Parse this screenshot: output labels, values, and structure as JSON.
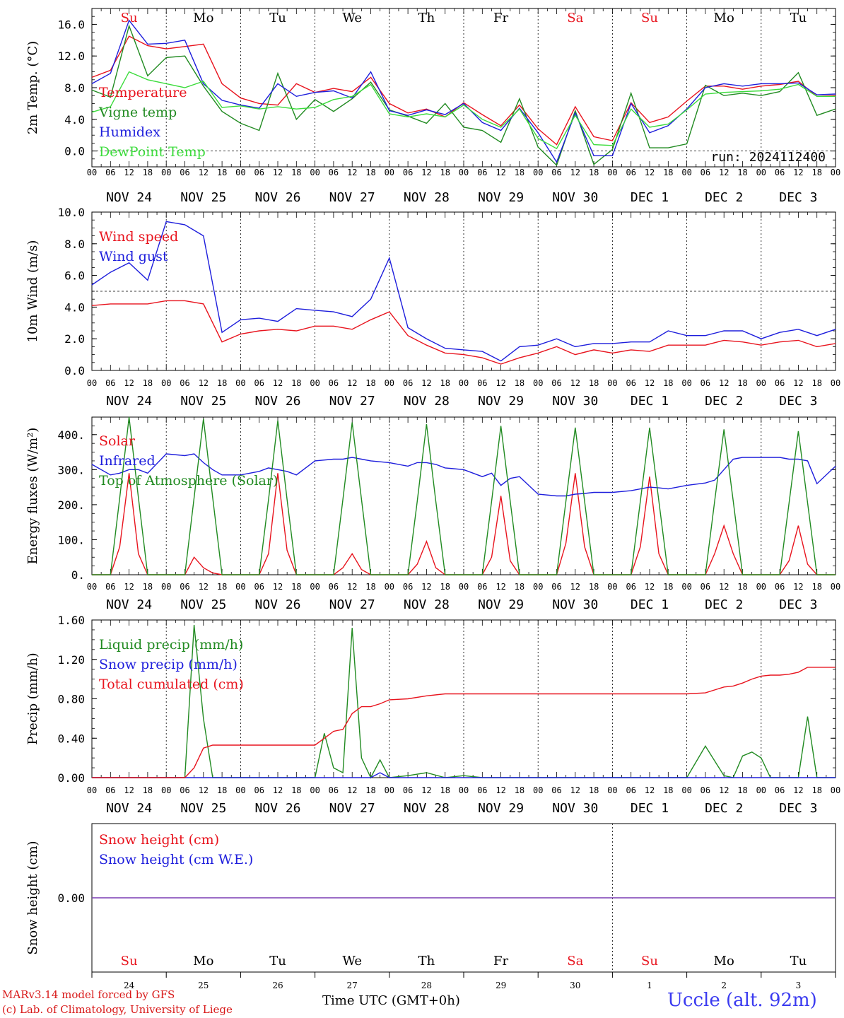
{
  "colors": {
    "red": "#e8141e",
    "green": "#228b22",
    "blue": "#1e1edc",
    "lightgreen": "#3cdc3c",
    "purple": "#7a3cb4"
  },
  "weekdays_top": [
    {
      "label": "Su",
      "color": "red"
    },
    {
      "label": "Mo",
      "color": "black"
    },
    {
      "label": "Tu",
      "color": "black"
    },
    {
      "label": "We",
      "color": "black"
    },
    {
      "label": "Th",
      "color": "black"
    },
    {
      "label": "Fr",
      "color": "black"
    },
    {
      "label": "Sa",
      "color": "red"
    },
    {
      "label": "Su",
      "color": "red"
    },
    {
      "label": "Mo",
      "color": "black"
    },
    {
      "label": "Tu",
      "color": "black"
    }
  ],
  "date_labels": [
    "NOV 24",
    "NOV 25",
    "NOV 26",
    "NOV 27",
    "NOV 28",
    "NOV 29",
    "NOV 30",
    "DEC  1",
    "DEC  2",
    "DEC  3"
  ],
  "hour_labels": [
    "00",
    "06",
    "12",
    "18"
  ],
  "hour_label_end": "00",
  "day_numbers": [
    "24",
    "25",
    "26",
    "27",
    "28",
    "29",
    "30",
    "1",
    "2",
    "3"
  ],
  "run_label": "run: 2024112400",
  "footer": {
    "line1": "MARv3.14 model forced by GFS",
    "line2": "(c) Lab. of Climatology, University of Liege",
    "station": "Uccle (alt. 92m)",
    "xaxis_title": "Time UTC (GMT+0h)",
    "xaxis_month": "NOV",
    "xaxis_month2": "DEC"
  },
  "chart_data": [
    {
      "type": "line",
      "ylabel": "2m Temp. (°C)",
      "ylim": [
        -2,
        18
      ],
      "yticks": [
        "0.0",
        "4.0",
        "8.0",
        "12.0",
        "16.0"
      ],
      "ytick_values": [
        0,
        4,
        8,
        12,
        16
      ],
      "ref_line": 0,
      "x_hours": [
        0,
        6,
        12,
        18,
        24,
        30,
        36,
        42,
        48,
        54,
        60,
        66,
        72,
        78,
        84,
        90,
        96,
        102,
        108,
        114,
        120,
        126,
        132,
        138,
        144,
        150,
        156,
        162,
        168,
        174,
        180,
        186,
        192,
        198,
        204,
        210,
        216,
        222,
        228,
        234,
        240
      ],
      "series": [
        {
          "name": "Temperature",
          "color": "red",
          "values": [
            9.3,
            10.2,
            14.5,
            13.3,
            12.9,
            13.2,
            13.5,
            8.5,
            6.7,
            6.0,
            5.8,
            8.5,
            7.4,
            7.9,
            7.5,
            9.3,
            6.0,
            4.8,
            5.3,
            4.3,
            6.1,
            4.6,
            3.2,
            5.8,
            2.8,
            0.8,
            5.6,
            1.8,
            1.3,
            6.1,
            3.6,
            4.3,
            6.3,
            8.2,
            8.2,
            7.8,
            8.2,
            8.4,
            8.8,
            6.9,
            7.0
          ]
        },
        {
          "name": "Vigne temp",
          "color": "green",
          "values": [
            7.7,
            6.8,
            15.8,
            9.5,
            11.8,
            12.0,
            8.2,
            5.0,
            3.5,
            2.6,
            9.8,
            4.0,
            6.5,
            5.0,
            6.6,
            8.7,
            5.2,
            4.4,
            3.5,
            6.0,
            3.0,
            2.6,
            1.1,
            6.6,
            0.5,
            -1.8,
            5.1,
            -1.7,
            0.2,
            7.3,
            0.4,
            0.4,
            0.9,
            8.3,
            7.0,
            7.3,
            7.0,
            7.5,
            9.9,
            4.5,
            5.3
          ]
        },
        {
          "name": "Humidex",
          "color": "blue",
          "values": [
            8.5,
            9.8,
            16.5,
            13.5,
            13.6,
            14.0,
            8.5,
            6.4,
            5.8,
            5.4,
            8.5,
            6.9,
            7.4,
            7.6,
            6.7,
            10.0,
            5.1,
            4.5,
            5.2,
            4.6,
            6.0,
            3.6,
            2.6,
            5.4,
            2.3,
            -1.4,
            4.8,
            -0.6,
            -0.6,
            6.0,
            2.3,
            3.2,
            5.3,
            8.0,
            8.5,
            8.2,
            8.5,
            8.5,
            8.6,
            7.1,
            7.2
          ]
        },
        {
          "name": "DewPoint Temp",
          "color": "lightgreen",
          "values": [
            4.9,
            5.6,
            10.0,
            9.0,
            8.5,
            8.0,
            8.8,
            5.5,
            5.7,
            5.3,
            5.6,
            5.3,
            5.5,
            6.5,
            6.9,
            8.4,
            4.7,
            4.3,
            4.7,
            4.3,
            5.8,
            4.0,
            3.0,
            5.3,
            1.6,
            0.3,
            4.5,
            0.8,
            0.7,
            5.3,
            3.0,
            3.4,
            5.2,
            7.2,
            7.4,
            7.5,
            7.6,
            7.8,
            8.4,
            6.9,
            6.9
          ]
        }
      ]
    },
    {
      "type": "line",
      "ylabel": "10m Wind (m/s)",
      "ylim": [
        0,
        10
      ],
      "yticks": [
        "0.0",
        "2.0",
        "4.0",
        "6.0",
        "8.0",
        "10.0"
      ],
      "ytick_values": [
        0,
        2,
        4,
        6,
        8,
        10
      ],
      "ref_line": 5,
      "x_hours": [
        0,
        6,
        12,
        18,
        24,
        30,
        36,
        42,
        48,
        54,
        60,
        66,
        72,
        78,
        84,
        90,
        96,
        102,
        108,
        114,
        120,
        126,
        132,
        138,
        144,
        150,
        156,
        162,
        168,
        174,
        180,
        186,
        192,
        198,
        204,
        210,
        216,
        222,
        228,
        234,
        240
      ],
      "series": [
        {
          "name": "Wind speed",
          "color": "red",
          "values": [
            4.1,
            4.2,
            4.2,
            4.2,
            4.4,
            4.4,
            4.2,
            1.8,
            2.3,
            2.5,
            2.6,
            2.5,
            2.8,
            2.8,
            2.6,
            3.2,
            3.7,
            2.2,
            1.6,
            1.1,
            1.0,
            0.8,
            0.4,
            0.8,
            1.1,
            1.5,
            1.0,
            1.3,
            1.1,
            1.3,
            1.2,
            1.6,
            1.6,
            1.6,
            1.9,
            1.8,
            1.6,
            1.8,
            1.9,
            1.5,
            1.7
          ]
        },
        {
          "name": "Wind gust",
          "color": "blue",
          "values": [
            5.4,
            6.2,
            6.8,
            5.7,
            9.4,
            9.2,
            8.5,
            2.4,
            3.2,
            3.3,
            3.1,
            3.9,
            3.8,
            3.7,
            3.4,
            4.5,
            7.1,
            2.7,
            2.0,
            1.4,
            1.3,
            1.2,
            0.6,
            1.5,
            1.6,
            2.0,
            1.5,
            1.7,
            1.7,
            1.8,
            1.8,
            2.5,
            2.2,
            2.2,
            2.5,
            2.5,
            2.0,
            2.4,
            2.6,
            2.2,
            2.6
          ]
        }
      ]
    },
    {
      "type": "line",
      "ylabel": "Energy fluxes (W/m²)",
      "ylim": [
        0,
        450
      ],
      "yticks": [
        "0.",
        "100.",
        "200.",
        "300.",
        "400."
      ],
      "ytick_values": [
        0,
        100,
        200,
        300,
        400
      ],
      "x_hours": [
        0,
        6,
        9,
        12,
        15,
        18,
        24,
        30,
        33,
        36,
        39,
        42,
        48,
        54,
        57,
        60,
        63,
        66,
        72,
        78,
        81,
        84,
        87,
        90,
        96,
        102,
        105,
        108,
        111,
        114,
        120,
        126,
        129,
        132,
        135,
        138,
        144,
        150,
        153,
        156,
        159,
        162,
        168,
        174,
        177,
        180,
        183,
        186,
        192,
        198,
        201,
        204,
        207,
        210,
        216,
        222,
        225,
        228,
        231,
        234,
        240
      ],
      "series": [
        {
          "name": "Solar",
          "color": "red",
          "values": [
            0,
            0,
            80,
            290,
            60,
            0,
            0,
            0,
            50,
            20,
            5,
            0,
            0,
            0,
            60,
            290,
            70,
            0,
            0,
            0,
            20,
            60,
            15,
            0,
            0,
            0,
            30,
            95,
            20,
            0,
            0,
            0,
            50,
            225,
            40,
            0,
            0,
            0,
            90,
            290,
            80,
            0,
            0,
            0,
            80,
            280,
            60,
            0,
            0,
            0,
            60,
            140,
            60,
            0,
            0,
            0,
            40,
            140,
            30,
            0,
            0
          ]
        },
        {
          "name": "Infrared",
          "color": "blue",
          "values": [
            315,
            285,
            290,
            300,
            300,
            290,
            345,
            340,
            345,
            320,
            300,
            285,
            285,
            295,
            305,
            300,
            295,
            285,
            325,
            330,
            330,
            335,
            330,
            325,
            320,
            310,
            320,
            320,
            315,
            305,
            300,
            280,
            290,
            255,
            275,
            280,
            230,
            225,
            225,
            230,
            232,
            235,
            235,
            240,
            245,
            250,
            248,
            245,
            255,
            262,
            270,
            300,
            330,
            335,
            335,
            335,
            330,
            330,
            325,
            260,
            310
          ]
        },
        {
          "name": "Top of Atmosphere (Solar)",
          "color": "green",
          "values": [
            0,
            0,
            220,
            450,
            220,
            0,
            0,
            0,
            220,
            445,
            220,
            0,
            0,
            0,
            215,
            440,
            215,
            0,
            0,
            0,
            215,
            435,
            215,
            0,
            0,
            0,
            210,
            430,
            210,
            0,
            0,
            0,
            210,
            425,
            210,
            0,
            0,
            0,
            210,
            420,
            210,
            0,
            0,
            0,
            210,
            420,
            210,
            0,
            0,
            0,
            210,
            415,
            210,
            0,
            0,
            0,
            205,
            410,
            205,
            0,
            0
          ]
        }
      ]
    },
    {
      "type": "line",
      "ylabel": "Precip (mm/h)",
      "ylim": [
        0,
        1.6
      ],
      "yticks": [
        "0.00",
        "0.40",
        "0.80",
        "1.20",
        "1.60"
      ],
      "ytick_values": [
        0,
        0.4,
        0.8,
        1.2,
        1.6
      ],
      "x_hours": [
        0,
        6,
        12,
        18,
        24,
        30,
        33,
        36,
        39,
        42,
        48,
        54,
        60,
        66,
        72,
        75,
        78,
        81,
        84,
        87,
        90,
        93,
        96,
        102,
        108,
        114,
        120,
        126,
        132,
        138,
        144,
        150,
        156,
        162,
        168,
        174,
        180,
        186,
        192,
        198,
        204,
        207,
        210,
        213,
        216,
        219,
        222,
        225,
        228,
        231,
        234,
        237,
        240
      ],
      "series": [
        {
          "name": "Liquid precip (mm/h)",
          "color": "green",
          "values": [
            0,
            0,
            0,
            0,
            0,
            0,
            1.55,
            0.6,
            0,
            0,
            0,
            0,
            0,
            0,
            0,
            0.45,
            0.1,
            0.05,
            1.52,
            0.2,
            0,
            0.18,
            0,
            0.02,
            0.05,
            0,
            0.02,
            0,
            0,
            0,
            0,
            0,
            0,
            0,
            0,
            0,
            0,
            0,
            0,
            0.32,
            0.02,
            0,
            0.22,
            0.26,
            0.2,
            0,
            0,
            0,
            0,
            0.62,
            0,
            0,
            0
          ]
        },
        {
          "name": "Snow precip (mm/h)",
          "color": "blue",
          "values": [
            0,
            0,
            0,
            0,
            0,
            0,
            0,
            0,
            0,
            0,
            0,
            0,
            0,
            0,
            0,
            0,
            0,
            0,
            0,
            0,
            0,
            0.05,
            0,
            0,
            0,
            0,
            0,
            0,
            0,
            0,
            0,
            0,
            0,
            0,
            0,
            0,
            0,
            0,
            0,
            0,
            0,
            0,
            0,
            0,
            0,
            0,
            0,
            0,
            0,
            0,
            0,
            0,
            0
          ]
        },
        {
          "name": "Total cumulated (cm)",
          "color": "red",
          "values": [
            0,
            0,
            0,
            0,
            0,
            0,
            0.1,
            0.3,
            0.33,
            0.33,
            0.33,
            0.33,
            0.33,
            0.33,
            0.33,
            0.4,
            0.47,
            0.49,
            0.65,
            0.72,
            0.72,
            0.75,
            0.79,
            0.8,
            0.83,
            0.85,
            0.85,
            0.85,
            0.85,
            0.85,
            0.85,
            0.85,
            0.85,
            0.85,
            0.85,
            0.85,
            0.85,
            0.85,
            0.85,
            0.86,
            0.92,
            0.93,
            0.96,
            1.0,
            1.03,
            1.04,
            1.04,
            1.05,
            1.07,
            1.12,
            1.12,
            1.12,
            1.12
          ]
        }
      ]
    },
    {
      "type": "line",
      "ylabel": "Snow height (cm)",
      "yticks": [
        "0.00"
      ],
      "ytick_values": [
        0
      ],
      "series": [
        {
          "name": "Snow height (cm)",
          "color": "red",
          "values": [
            0,
            0
          ]
        },
        {
          "name": "Snow height (cm W.E.)",
          "color": "blue",
          "values": [
            0,
            0
          ]
        }
      ]
    }
  ]
}
